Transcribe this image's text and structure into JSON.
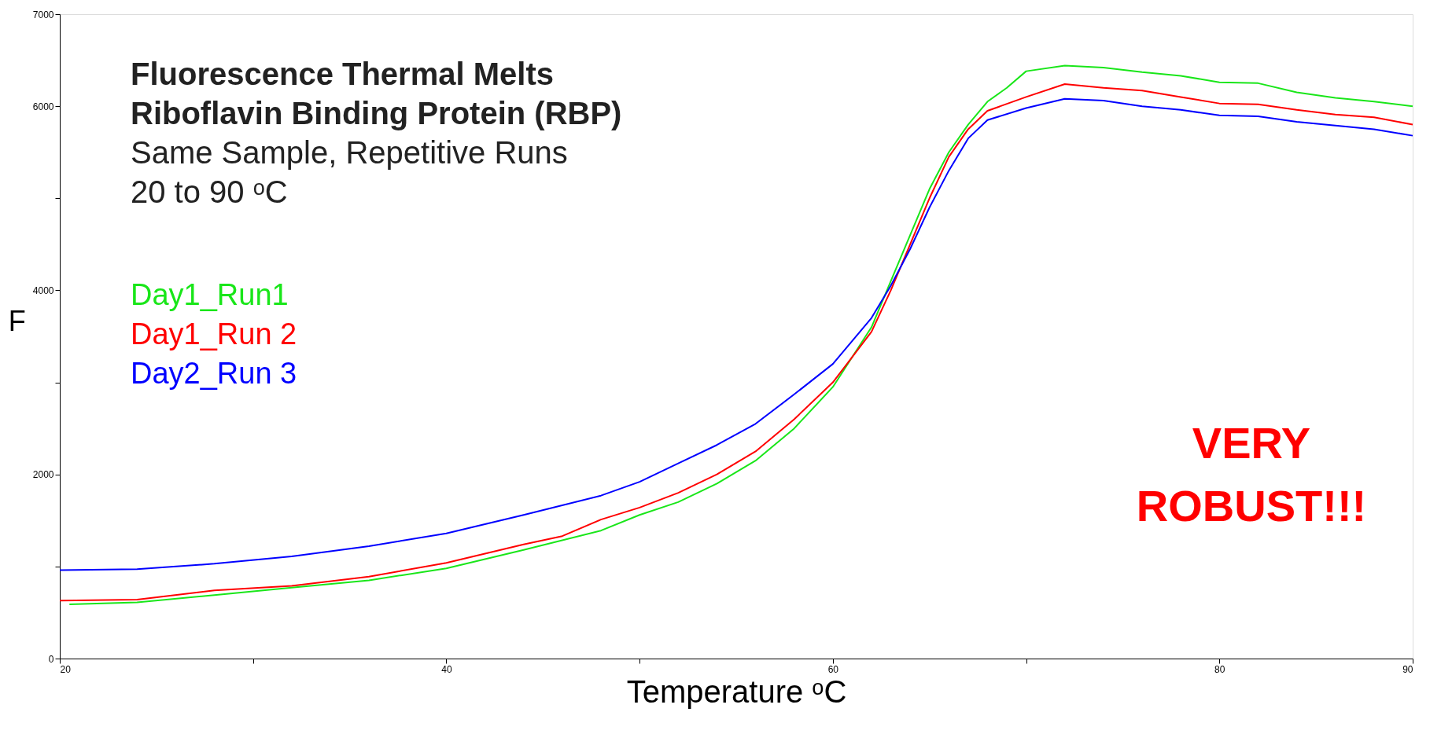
{
  "chart_data": {
    "type": "line",
    "title": [
      "Fluorescence Thermal Melts",
      "Riboflavin Binding Protein (RBP)"
    ],
    "subtitle": [
      "Same Sample, Repetitive Runs",
      "20 to 90 ᵒC"
    ],
    "xlabel": "Temperature ᵒC",
    "ylabel": "F",
    "annotations": [
      "VERY",
      "ROBUST!!!"
    ],
    "xlim": [
      20,
      90
    ],
    "xticks": [
      20,
      {
        "value": 30,
        "label": null
      },
      40,
      {
        "value": 50,
        "label": null
      },
      60,
      {
        "value": 70,
        "label": null
      },
      80,
      90
    ],
    "ylim": [
      0,
      7000
    ],
    "yticks": [
      0,
      {
        "value": 1000,
        "label": null
      },
      2000,
      {
        "value": 3000,
        "label": null
      },
      4000,
      {
        "value": 5000,
        "label": null
      },
      6000,
      7000
    ],
    "grid": false,
    "legend": "left",
    "marker": "none",
    "line_style": "solid",
    "series": [
      {
        "name": "Day1_Run1",
        "color": "#19e619",
        "x": [
          20.5,
          24,
          28,
          32,
          36,
          40,
          44,
          48,
          50,
          52,
          54,
          56,
          58,
          60,
          62,
          63,
          64,
          65,
          66,
          67,
          68,
          69,
          70,
          72,
          74,
          76,
          78,
          80,
          82,
          84,
          86,
          88,
          90
        ],
        "values": [
          590,
          610,
          690,
          770,
          850,
          980,
          1180,
          1390,
          1560,
          1700,
          1900,
          2150,
          2500,
          2950,
          3600,
          4100,
          4600,
          5100,
          5500,
          5800,
          6050,
          6200,
          6380,
          6440,
          6420,
          6370,
          6330,
          6260,
          6250,
          6150,
          6090,
          6050,
          6000
        ]
      },
      {
        "name": "Day1_Run 2",
        "color": "#ff0000",
        "x": [
          20,
          24,
          28,
          32,
          36,
          40,
          44,
          46,
          48,
          50,
          52,
          54,
          56,
          58,
          60,
          62,
          63,
          64,
          65,
          66,
          67,
          68,
          70,
          72,
          74,
          76,
          78,
          80,
          82,
          84,
          86,
          88,
          90
        ],
        "values": [
          630,
          640,
          740,
          790,
          890,
          1040,
          1240,
          1330,
          1510,
          1640,
          1800,
          2000,
          2250,
          2600,
          3000,
          3550,
          4000,
          4500,
          5000,
          5450,
          5750,
          5950,
          6100,
          6240,
          6200,
          6170,
          6100,
          6030,
          6020,
          5960,
          5910,
          5880,
          5800
        ]
      },
      {
        "name": "Day2_Run 3",
        "color": "#0000ff",
        "x": [
          20,
          24,
          28,
          32,
          36,
          40,
          44,
          48,
          50,
          52,
          54,
          56,
          58,
          60,
          61,
          62,
          63,
          64,
          65,
          66,
          67,
          68,
          70,
          72,
          74,
          76,
          78,
          80,
          82,
          84,
          86,
          88,
          90
        ],
        "values": [
          960,
          970,
          1030,
          1110,
          1220,
          1360,
          1560,
          1770,
          1920,
          2120,
          2320,
          2550,
          2870,
          3200,
          3450,
          3700,
          4050,
          4450,
          4900,
          5300,
          5650,
          5850,
          5980,
          6080,
          6060,
          6000,
          5960,
          5900,
          5890,
          5830,
          5790,
          5750,
          5680
        ]
      }
    ]
  }
}
